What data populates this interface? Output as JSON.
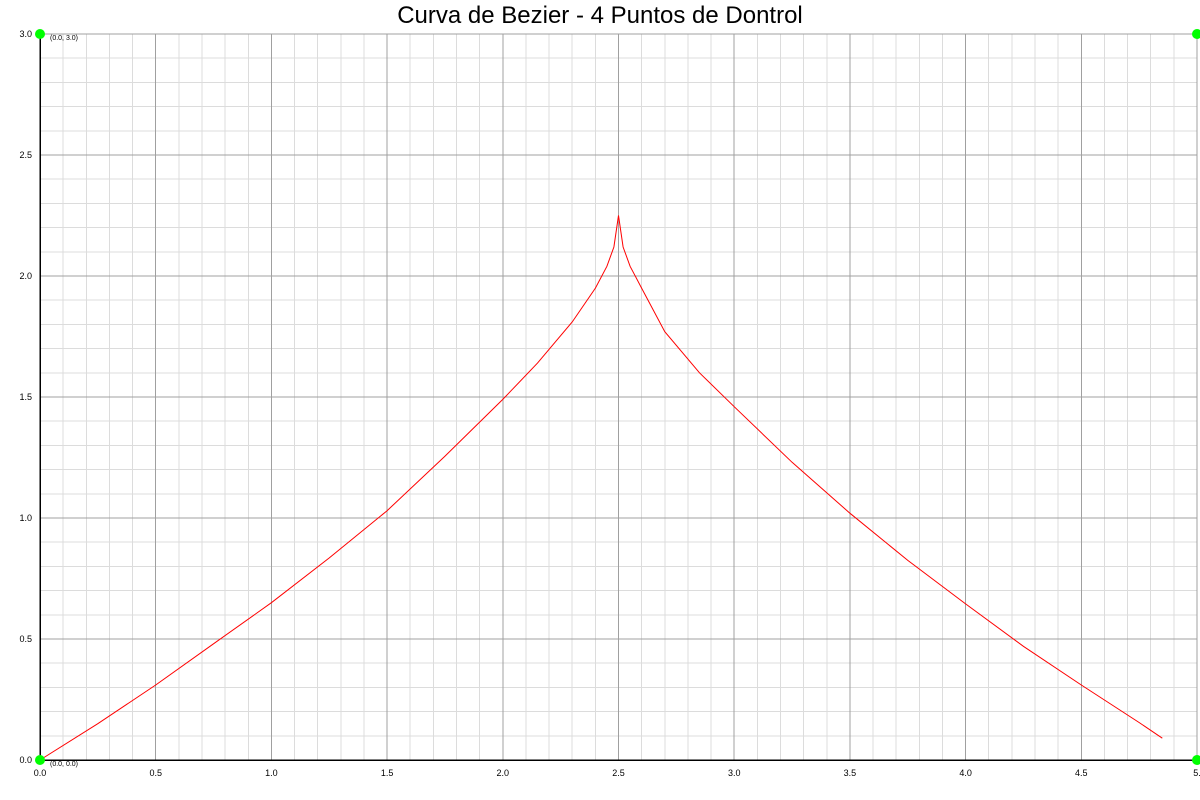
{
  "chart_data": {
    "type": "line",
    "title": "Curva de Bezier - 4 Puntos de Dontrol",
    "xlabel": "",
    "ylabel": "",
    "xlim": [
      0.0,
      5.0
    ],
    "ylim": [
      0.0,
      3.0
    ],
    "x_ticks": [
      "0.0",
      "0.5",
      "1.0",
      "1.5",
      "2.0",
      "2.5",
      "3.0",
      "3.5",
      "4.0",
      "4.5",
      "5."
    ],
    "y_ticks": [
      "0.0",
      "0.5",
      "1.0",
      "1.5",
      "2.0",
      "2.5",
      "3.0"
    ],
    "grid": true,
    "series": [
      {
        "color": "#ff0000",
        "x": [
          0.0,
          0.25,
          0.5,
          0.75,
          1.0,
          1.25,
          1.5,
          1.75,
          2.0,
          2.15,
          2.3,
          2.4,
          2.45,
          2.48,
          2.5,
          2.52,
          2.55,
          2.6,
          2.7,
          2.85,
          3.0,
          3.25,
          3.5,
          3.75,
          4.0,
          4.25,
          4.5,
          4.75,
          4.85
        ],
        "y": [
          0.0,
          0.15,
          0.31,
          0.48,
          0.65,
          0.835,
          1.03,
          1.255,
          1.49,
          1.64,
          1.81,
          1.95,
          2.04,
          2.12,
          2.25,
          2.12,
          2.04,
          1.95,
          1.77,
          1.6,
          1.46,
          1.23,
          1.02,
          0.825,
          0.645,
          0.47,
          0.31,
          0.155,
          0.09
        ]
      }
    ],
    "control_points": [
      {
        "x": 0.0,
        "y": 0.0,
        "label": "(0.0, 0.0)"
      },
      {
        "x": 0.0,
        "y": 3.0,
        "label": "(0.0, 3.0)"
      },
      {
        "x": 5.0,
        "y": 3.0,
        "label": ""
      },
      {
        "x": 5.0,
        "y": 0.0,
        "label": ""
      }
    ],
    "control_point_color": "#00ff00",
    "grid_major_color": "#a0a0a0",
    "grid_minor_color": "#dcdcdc",
    "axis_color": "#000000"
  }
}
